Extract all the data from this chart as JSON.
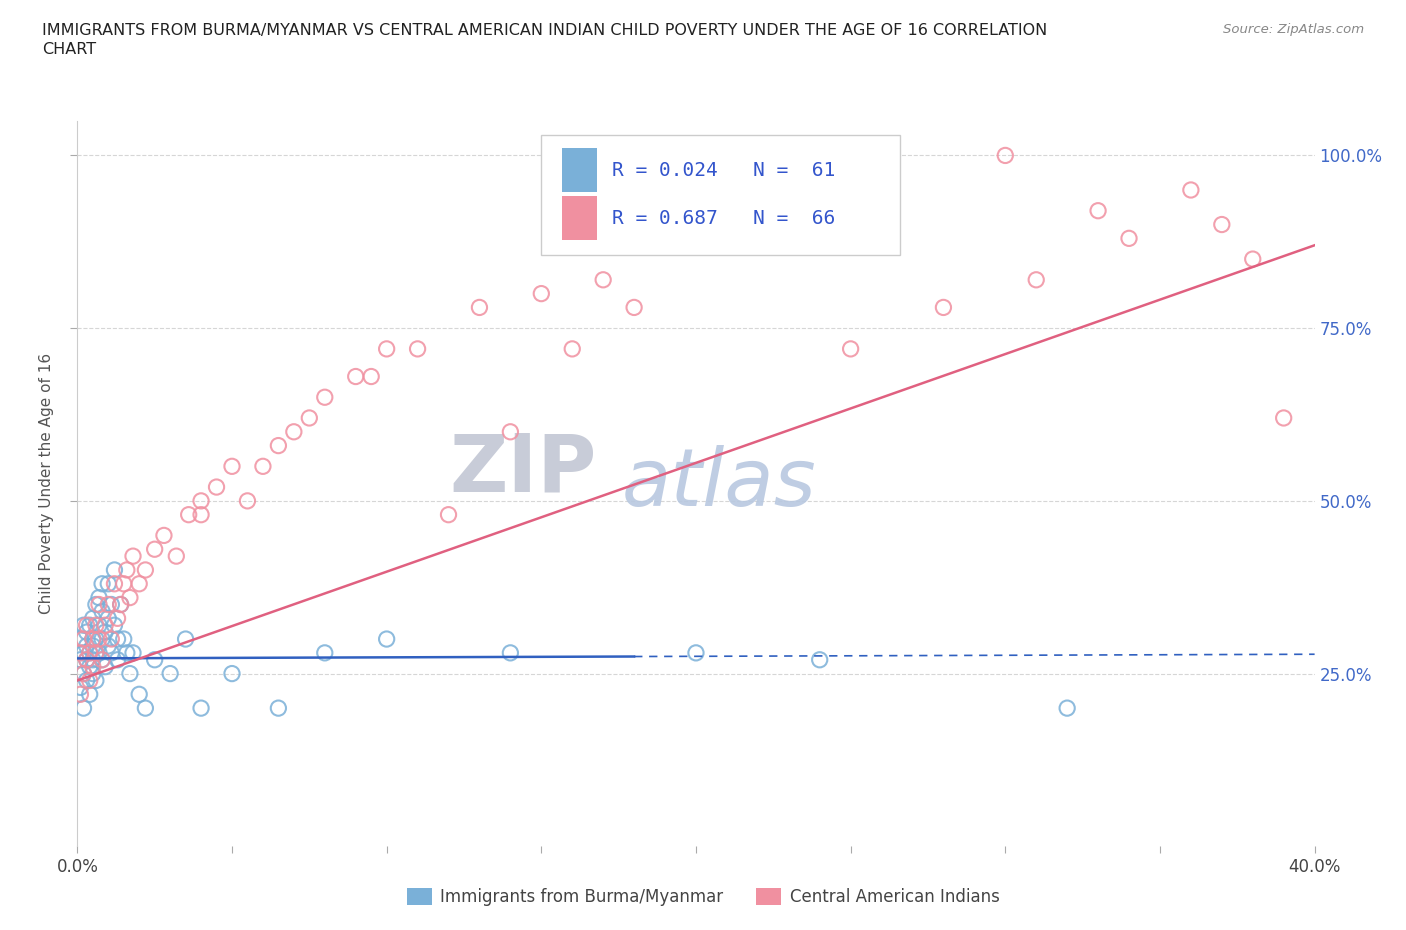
{
  "title_line1": "IMMIGRANTS FROM BURMA/MYANMAR VS CENTRAL AMERICAN INDIAN CHILD POVERTY UNDER THE AGE OF 16 CORRELATION",
  "title_line2": "CHART",
  "source": "Source: ZipAtlas.com",
  "ylabel_label": "Child Poverty Under the Age of 16",
  "series1_label": "Immigrants from Burma/Myanmar",
  "series2_label": "Central American Indians",
  "series1_color": "#7ab0d8",
  "series2_color": "#f090a0",
  "trendline1_color": "#3060c0",
  "trendline2_color": "#e06080",
  "watermark_zip": "ZIP",
  "watermark_atlas": "atlas",
  "watermark_zip_color": "#c8ccd8",
  "watermark_atlas_color": "#b8c8e0",
  "legend_color": "#3355cc",
  "xlim": [
    0.0,
    0.4
  ],
  "ylim": [
    0.0,
    1.05
  ],
  "ytick_vals": [
    0.25,
    0.5,
    0.75,
    1.0
  ],
  "ytick_labels": [
    "25.0%",
    "50.0%",
    "75.0%",
    "100.0%"
  ],
  "background_color": "#ffffff",
  "grid_color": "#cccccc",
  "series1_x": [
    0.001,
    0.001,
    0.001,
    0.002,
    0.002,
    0.002,
    0.002,
    0.003,
    0.003,
    0.003,
    0.003,
    0.004,
    0.004,
    0.004,
    0.004,
    0.005,
    0.005,
    0.005,
    0.005,
    0.005,
    0.006,
    0.006,
    0.006,
    0.006,
    0.007,
    0.007,
    0.007,
    0.008,
    0.008,
    0.008,
    0.008,
    0.009,
    0.009,
    0.01,
    0.01,
    0.01,
    0.011,
    0.011,
    0.012,
    0.012,
    0.013,
    0.013,
    0.014,
    0.015,
    0.016,
    0.017,
    0.018,
    0.02,
    0.022,
    0.025,
    0.03,
    0.035,
    0.04,
    0.05,
    0.065,
    0.08,
    0.1,
    0.14,
    0.2,
    0.24,
    0.32
  ],
  "series1_y": [
    0.27,
    0.3,
    0.23,
    0.28,
    0.32,
    0.25,
    0.2,
    0.27,
    0.31,
    0.24,
    0.29,
    0.26,
    0.32,
    0.28,
    0.22,
    0.3,
    0.27,
    0.33,
    0.25,
    0.29,
    0.28,
    0.35,
    0.3,
    0.24,
    0.32,
    0.28,
    0.36,
    0.3,
    0.34,
    0.27,
    0.38,
    0.31,
    0.26,
    0.33,
    0.29,
    0.38,
    0.35,
    0.28,
    0.32,
    0.4,
    0.3,
    0.27,
    0.35,
    0.3,
    0.28,
    0.25,
    0.28,
    0.22,
    0.2,
    0.27,
    0.25,
    0.3,
    0.2,
    0.25,
    0.2,
    0.28,
    0.3,
    0.28,
    0.28,
    0.27,
    0.2
  ],
  "series2_x": [
    0.001,
    0.001,
    0.002,
    0.002,
    0.003,
    0.003,
    0.004,
    0.004,
    0.005,
    0.005,
    0.006,
    0.006,
    0.007,
    0.007,
    0.008,
    0.009,
    0.01,
    0.011,
    0.012,
    0.013,
    0.014,
    0.015,
    0.016,
    0.017,
    0.018,
    0.02,
    0.022,
    0.025,
    0.028,
    0.032,
    0.036,
    0.04,
    0.045,
    0.05,
    0.06,
    0.065,
    0.07,
    0.08,
    0.09,
    0.1,
    0.11,
    0.13,
    0.15,
    0.17,
    0.2,
    0.22,
    0.24,
    0.26,
    0.3,
    0.33,
    0.36,
    0.38,
    0.04,
    0.055,
    0.075,
    0.095,
    0.18,
    0.25,
    0.28,
    0.31,
    0.34,
    0.37,
    0.39,
    0.16,
    0.12,
    0.14
  ],
  "series2_y": [
    0.22,
    0.28,
    0.25,
    0.3,
    0.27,
    0.32,
    0.24,
    0.28,
    0.3,
    0.26,
    0.32,
    0.28,
    0.35,
    0.3,
    0.27,
    0.32,
    0.35,
    0.3,
    0.38,
    0.33,
    0.35,
    0.38,
    0.4,
    0.36,
    0.42,
    0.38,
    0.4,
    0.43,
    0.45,
    0.42,
    0.48,
    0.5,
    0.52,
    0.55,
    0.55,
    0.58,
    0.6,
    0.65,
    0.68,
    0.72,
    0.72,
    0.78,
    0.8,
    0.82,
    0.88,
    0.9,
    0.95,
    0.97,
    1.0,
    0.92,
    0.95,
    0.85,
    0.48,
    0.5,
    0.62,
    0.68,
    0.78,
    0.72,
    0.78,
    0.82,
    0.88,
    0.9,
    0.62,
    0.72,
    0.48,
    0.6
  ],
  "trendline1_x": [
    0.0,
    0.4
  ],
  "trendline1_y": [
    0.272,
    0.278
  ],
  "trendline2_x": [
    0.0,
    0.4
  ],
  "trendline2_y": [
    0.24,
    0.87
  ]
}
